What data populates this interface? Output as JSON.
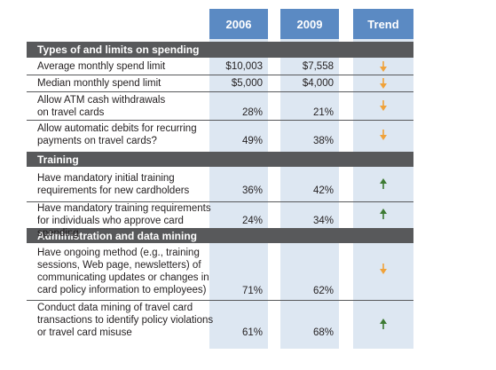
{
  "header": {
    "col_2006": "2006",
    "col_2009": "2009",
    "col_trend": "Trend"
  },
  "colors": {
    "header_blue": "#5b8ac3",
    "column_tint": "#dde7f2",
    "section_gray": "#58595b",
    "arrow_down": "#f0a23a",
    "arrow_up": "#3d7a33"
  },
  "sections": [
    {
      "title": "Types of and limits on spending"
    },
    {
      "title": "Training"
    },
    {
      "title": "Administration and data mining"
    }
  ],
  "rows": [
    {
      "label": "Average monthly spend limit",
      "v2006": "$10,003",
      "v2009": "$7,558",
      "trend": "down-arrow-icon"
    },
    {
      "label": "Median monthly spend limit",
      "v2006": "$5,000",
      "v2009": "$4,000",
      "trend": "down-arrow-icon"
    },
    {
      "label": "Allow ATM cash withdrawals\non travel cards",
      "v2006": "28%",
      "v2009": "21%",
      "trend": "down-arrow-icon"
    },
    {
      "label": "Allow automatic debits for recurring\npayments on travel cards?",
      "v2006": "49%",
      "v2009": "38%",
      "trend": "down-arrow-icon"
    },
    {
      "label": "Have mandatory initial training\nrequirements for new cardholders",
      "v2006": "36%",
      "v2009": "42%",
      "trend": "up-arrow-icon"
    },
    {
      "label": "Have mandatory training requirements\nfor individuals who approve card spending",
      "v2006": "24%",
      "v2009": "34%",
      "trend": "up-arrow-icon"
    },
    {
      "label": "Have ongoing method (e.g., training\nsessions, Web page, newsletters) of\ncommunicating updates or changes in\ncard policy information to employees)",
      "v2006": "71%",
      "v2009": "62%",
      "trend": "down-arrow-icon"
    },
    {
      "label": "Conduct data mining of travel card\ntransactions to identify policy violations\nor travel card misuse",
      "v2006": "61%",
      "v2009": "68%",
      "trend": "up-arrow-icon"
    }
  ]
}
